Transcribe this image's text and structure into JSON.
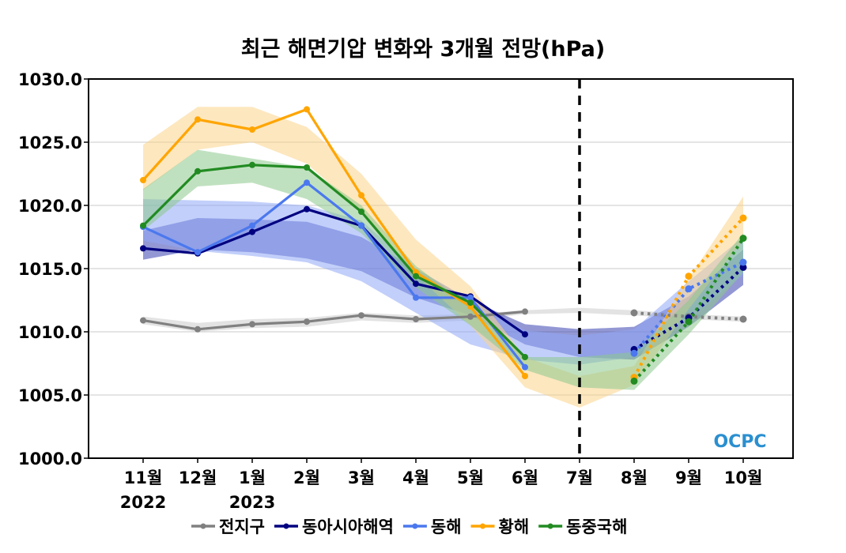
{
  "chart_data": {
    "type": "line",
    "title": "최근 해면기압 변화와 3개월 전망(hPa)",
    "xlabel": "",
    "ylabel": "",
    "ylim": [
      1000.0,
      1030.0
    ],
    "yticks": [
      "1000.0",
      "1005.0",
      "1010.0",
      "1015.0",
      "1020.0",
      "1025.0",
      "1030.0"
    ],
    "ytick_values": [
      1000,
      1005,
      1010,
      1015,
      1020,
      1025,
      1030
    ],
    "grid": "horizontal",
    "categories": [
      "11월",
      "12월",
      "1월",
      "2월",
      "3월",
      "4월",
      "5월",
      "6월",
      "7월",
      "8월",
      "9월",
      "10월"
    ],
    "year_labels": [
      {
        "index": 0,
        "label": "2022"
      },
      {
        "index": 2,
        "label": "2023"
      }
    ],
    "forecast_divider_index": 8,
    "forecast_divider_style": "dashed",
    "observed_indices": [
      0,
      1,
      2,
      3,
      4,
      5,
      6,
      7
    ],
    "forecast_indices": [
      9,
      10,
      11
    ],
    "legend_position": "bottom",
    "watermark": "OCPC",
    "series": [
      {
        "name": "전지구",
        "color": "#808080",
        "band_color": "#cccccc",
        "observed": [
          1010.9,
          1010.2,
          1010.6,
          1010.8,
          1011.3,
          1011.0,
          1011.2,
          1011.6
        ],
        "forecast": [
          1011.5,
          1011.2,
          1011.0
        ],
        "band_upper": [
          1011.2,
          1010.7,
          1011.0,
          1011.1,
          1011.5,
          1011.3,
          1011.4,
          1011.7,
          1011.9,
          1011.7,
          1011.4,
          1011.2
        ],
        "band_lower": [
          1010.6,
          1010.0,
          1010.3,
          1010.4,
          1010.9,
          1010.7,
          1010.9,
          1011.4,
          1011.5,
          1011.3,
          1011.0,
          1010.8
        ]
      },
      {
        "name": "동아시아해역",
        "color": "#000080",
        "band_color": "#3b44b0",
        "observed": [
          1016.6,
          1016.2,
          1017.9,
          1019.7,
          1018.4,
          1013.8,
          1012.8,
          1009.8
        ],
        "forecast": [
          1008.6,
          1011.1,
          1015.1
        ],
        "band_upper": [
          1018.0,
          1019.0,
          1018.9,
          1018.7,
          1017.5,
          1015.0,
          1012.5,
          1010.6,
          1010.2,
          1010.4,
          1012.8,
          1016.5
        ],
        "band_lower": [
          1015.7,
          1016.5,
          1016.3,
          1015.8,
          1014.8,
          1012.7,
          1011.3,
          1009.0,
          1008.0,
          1007.8,
          1010.4,
          1013.7
        ]
      },
      {
        "name": "동해",
        "color": "#4b78ee",
        "band_color": "#8fa8f5",
        "observed": [
          1018.3,
          1016.3,
          1018.4,
          1021.8,
          1018.4,
          1012.7,
          1012.7,
          1007.2
        ],
        "forecast": [
          1008.3,
          1013.4,
          1015.5
        ],
        "band_upper": [
          1020.5,
          1020.4,
          1020.3,
          1020.0,
          1018.8,
          1015.0,
          1012.5,
          1010.1,
          1009.7,
          1010.2,
          1014.0,
          1017.5
        ],
        "band_lower": [
          1017.2,
          1016.4,
          1016.0,
          1015.5,
          1014.0,
          1011.5,
          1009.0,
          1007.8,
          1007.4,
          1008.0,
          1011.0,
          1014.5
        ]
      },
      {
        "name": "황해",
        "color": "#ffa500",
        "band_color": "#fbd38a",
        "observed": [
          1022.0,
          1026.8,
          1026.0,
          1027.6,
          1020.8,
          1014.7,
          1012.0,
          1006.5
        ],
        "forecast": [
          1006.4,
          1014.4,
          1019.0
        ],
        "band_upper": [
          1024.8,
          1027.8,
          1027.8,
          1026.2,
          1022.5,
          1017.3,
          1013.6,
          1008.0,
          1006.5,
          1007.3,
          1014.2,
          1020.7
        ],
        "band_lower": [
          1021.2,
          1024.4,
          1025.0,
          1023.3,
          1019.5,
          1014.5,
          1010.5,
          1005.6,
          1004.0,
          1005.8,
          1011.8,
          1017.3
        ]
      },
      {
        "name": "동중국해",
        "color": "#228b22",
        "band_color": "#8cc88c",
        "observed": [
          1018.4,
          1022.7,
          1023.2,
          1023.0,
          1019.5,
          1014.4,
          1012.3,
          1008.0
        ],
        "forecast": [
          1006.1,
          1010.8,
          1017.4
        ],
        "band_upper": [
          1021.3,
          1024.4,
          1023.7,
          1023.0,
          1020.0,
          1015.2,
          1012.0,
          1008.0,
          1008.0,
          1008.4,
          1012.5,
          1017.8
        ],
        "band_lower": [
          1018.0,
          1021.5,
          1021.8,
          1020.5,
          1017.8,
          1013.5,
          1010.5,
          1007.0,
          1005.6,
          1005.4,
          1009.8,
          1014.7
        ]
      }
    ]
  }
}
